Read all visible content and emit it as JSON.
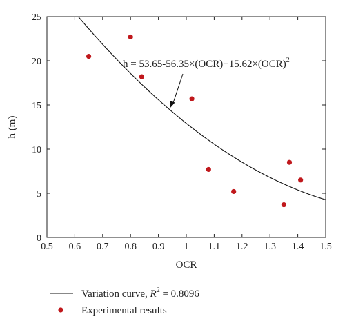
{
  "chart_data": {
    "type": "scatter",
    "xlabel": "OCR",
    "ylabel": "h (m)",
    "xlim": [
      0.5,
      1.5
    ],
    "ylim": [
      0,
      25
    ],
    "xticks": [
      0.5,
      0.6,
      0.7,
      0.8,
      0.9,
      1.0,
      1.1,
      1.2,
      1.3,
      1.4,
      1.5
    ],
    "xtick_labels": [
      "0.5",
      "0.6",
      "0.7",
      "0.8",
      "0.9",
      "1",
      "1.1",
      "1.2",
      "1.3",
      "1.4",
      "1.5"
    ],
    "yticks": [
      0,
      5,
      10,
      15,
      20,
      25
    ],
    "ytick_labels": [
      "0",
      "5",
      "10",
      "15",
      "20",
      "25"
    ],
    "grid": false,
    "point_color": "#c0181c",
    "line_color": "#111111",
    "curve": {
      "a": 53.65,
      "b": -56.35,
      "c": 15.62,
      "equation_main": "h = 53.65-56.35×(OCR)+15.62×(OCR)",
      "equation_exp": "2"
    },
    "points": [
      {
        "x": 0.65,
        "y": 20.5
      },
      {
        "x": 0.8,
        "y": 22.7
      },
      {
        "x": 0.84,
        "y": 18.2
      },
      {
        "x": 1.02,
        "y": 15.7
      },
      {
        "x": 1.08,
        "y": 7.7
      },
      {
        "x": 1.17,
        "y": 5.2
      },
      {
        "x": 1.35,
        "y": 3.7
      },
      {
        "x": 1.37,
        "y": 8.5
      },
      {
        "x": 1.41,
        "y": 6.5
      }
    ],
    "legend": {
      "position": "bottom",
      "line_label": "Variation curve, ",
      "r2_symbol": "R",
      "r2_exp": "2",
      "r2_value": " = 0.8096",
      "points_label": "Experimental results"
    }
  }
}
